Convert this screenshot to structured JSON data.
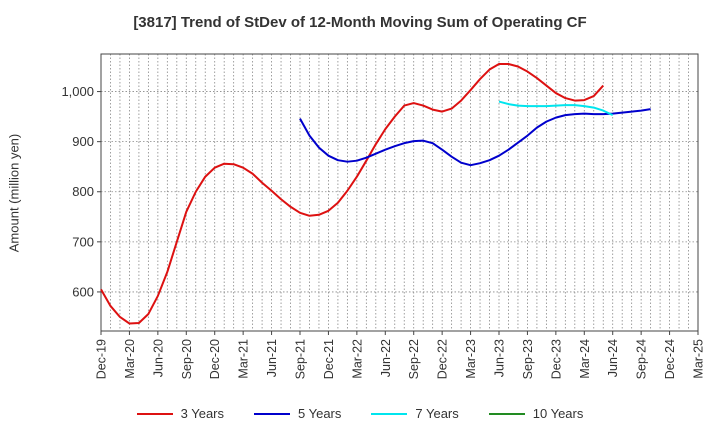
{
  "chart_data": {
    "type": "line",
    "title": "[3817]  Trend of StDev of 12-Month Moving Sum of Operating CF",
    "xlabel": "",
    "ylabel": "Amount (million yen)",
    "x_tick_labels": [
      "Dec-19",
      "Mar-20",
      "Jun-20",
      "Sep-20",
      "Dec-20",
      "Mar-21",
      "Jun-21",
      "Sep-21",
      "Dec-21",
      "Mar-22",
      "Jun-22",
      "Sep-22",
      "Dec-22",
      "Mar-23",
      "Jun-23",
      "Sep-23",
      "Dec-23",
      "Mar-24",
      "Jun-24",
      "Sep-24",
      "Dec-24",
      "Mar-25"
    ],
    "y_ticks": [
      600,
      700,
      800,
      900,
      1000
    ],
    "y_tick_labels": [
      "600",
      "700",
      "800",
      "900",
      "1,000"
    ],
    "ylim": [
      522,
      1075
    ],
    "grid": true,
    "legend_position": "bottom",
    "series": [
      {
        "name": "3 Years",
        "color": "#dd1111",
        "start_index": 0,
        "values": [
          605,
          572,
          550,
          537,
          538,
          556,
          592,
          640,
          700,
          760,
          800,
          830,
          848,
          856,
          855,
          848,
          836,
          818,
          802,
          785,
          770,
          758,
          752,
          754,
          762,
          778,
          802,
          830,
          862,
          895,
          925,
          950,
          972,
          977,
          972,
          964,
          960,
          966,
          982,
          1003,
          1025,
          1044,
          1055,
          1055,
          1050,
          1040,
          1027,
          1012,
          997,
          987,
          982,
          983,
          991,
          1012
        ]
      },
      {
        "name": "5 Years",
        "color": "#0000cc",
        "start_index": 21,
        "values": [
          946,
          912,
          888,
          872,
          863,
          860,
          862,
          868,
          876,
          884,
          891,
          897,
          901,
          902,
          897,
          884,
          870,
          858,
          853,
          857,
          863,
          872,
          884,
          898,
          912,
          928,
          940,
          948,
          953,
          955,
          956,
          955,
          955,
          956,
          958,
          960,
          962,
          965
        ]
      },
      {
        "name": "7 Years",
        "color": "#00e5ee",
        "start_index": 42,
        "values": [
          980,
          975,
          972,
          971,
          971,
          971,
          972,
          973,
          973,
          971,
          968,
          962,
          953
        ]
      },
      {
        "name": "10 Years",
        "color": "#228b22",
        "start_index": 0,
        "values": []
      }
    ]
  }
}
